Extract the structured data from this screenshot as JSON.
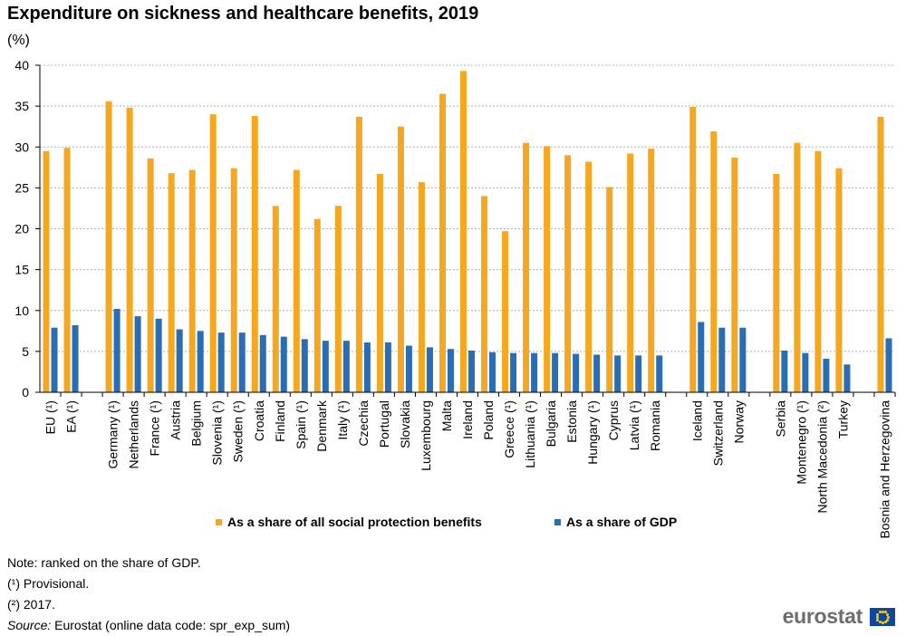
{
  "title": "Expenditure on sickness and healthcare benefits, 2019",
  "unit": "(%)",
  "chart_data": {
    "type": "bar",
    "ylim": [
      0,
      40
    ],
    "yticks": [
      0,
      5,
      10,
      15,
      20,
      25,
      30,
      35,
      40
    ],
    "grid": true,
    "legend_position": "bottom",
    "categories": [
      "EU (¹)",
      "EA (¹)",
      "",
      "Germany (¹)",
      "Netherlands",
      "France (¹)",
      "Austria",
      "Belgium",
      "Slovenia (¹)",
      "Sweden (¹)",
      "Croatia",
      "Finland",
      "Spain (¹)",
      "Denmark",
      "Italy (¹)",
      "Czechia",
      "Portugal",
      "Slovakia",
      "Luxembourg",
      "Malta",
      "Ireland",
      "Poland",
      "Greece (¹)",
      "Lithuania (¹)",
      "Bulgaria",
      "Estonia",
      "Hungary (¹)",
      "Cyprus",
      "Latvia (¹)",
      "Romania",
      "",
      "Iceland",
      "Switzerland",
      "Norway",
      "",
      "Serbia",
      "Montenegro (¹)",
      "North Macedonia (²)",
      "Turkey",
      "",
      "Bosnia and Herzegovina"
    ],
    "series": [
      {
        "name": "As a share of all social protection benefits",
        "color": "#f5a81f",
        "values": [
          29.5,
          29.9,
          null,
          35.6,
          34.8,
          28.6,
          26.8,
          27.2,
          34.0,
          27.4,
          33.8,
          22.8,
          27.2,
          21.2,
          22.8,
          33.7,
          26.7,
          32.5,
          25.7,
          36.5,
          39.3,
          24.0,
          19.7,
          30.5,
          30.1,
          29.0,
          28.2,
          25.1,
          29.2,
          29.8,
          null,
          34.9,
          31.9,
          28.7,
          null,
          26.7,
          30.5,
          29.5,
          27.4,
          null,
          33.7
        ]
      },
      {
        "name": "As a share of GDP",
        "color": "#2b6db4",
        "values": [
          7.9,
          8.2,
          null,
          10.2,
          9.3,
          9.0,
          7.7,
          7.5,
          7.3,
          7.3,
          7.0,
          6.8,
          6.5,
          6.3,
          6.3,
          6.1,
          6.1,
          5.7,
          5.5,
          5.3,
          5.1,
          4.9,
          4.8,
          4.8,
          4.8,
          4.7,
          4.6,
          4.5,
          4.5,
          4.5,
          null,
          8.6,
          7.9,
          7.9,
          null,
          5.1,
          4.8,
          4.1,
          3.4,
          null,
          6.6
        ]
      }
    ]
  },
  "notes": {
    "line1": "Note: ranked on the share of GDP.",
    "line2": "(¹) Provisional.",
    "line3": "(²) 2017.",
    "source_label": "Source:",
    "source_text": "Eurostat (online data code: spr_exp_sum)"
  },
  "logo": {
    "text": "eurostat"
  }
}
